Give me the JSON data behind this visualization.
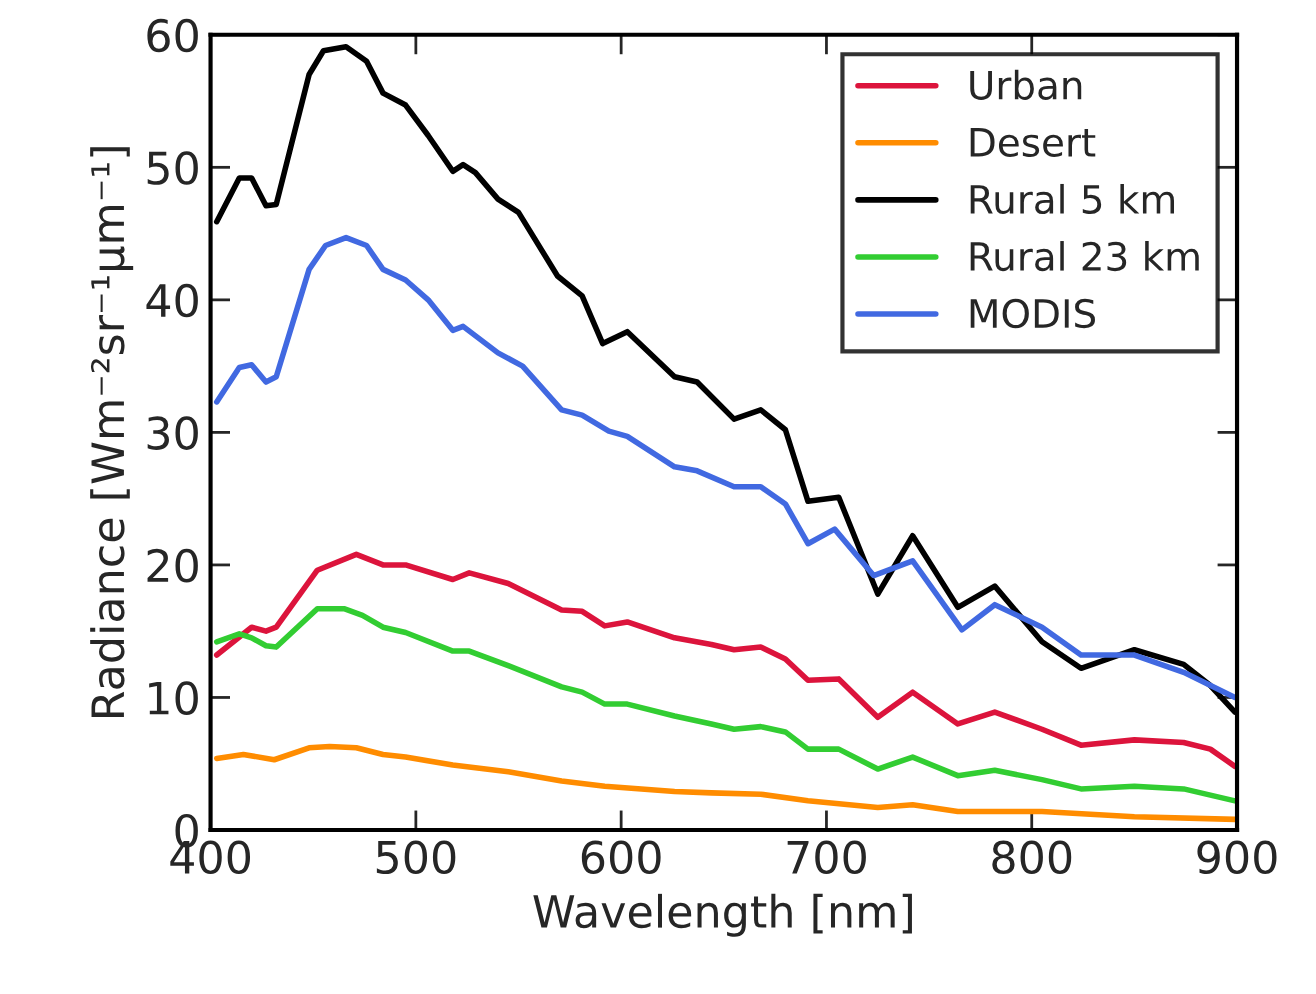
{
  "chart_data": {
    "type": "line",
    "xlabel": "Wavelength [nm]",
    "ylabel": "Radiance [Wm⁻²sr⁻¹µm⁻¹]",
    "xlim": [
      400,
      900
    ],
    "ylim": [
      0,
      60
    ],
    "xticks": [
      400,
      500,
      600,
      700,
      800,
      900
    ],
    "yticks": [
      0,
      10,
      20,
      30,
      40,
      50,
      60
    ],
    "grid": false,
    "legend": "top right",
    "marker": "none",
    "line_style": "solid",
    "series": [
      {
        "name": "Urban",
        "color": "#dc143c",
        "x": [
          403,
          420,
          427,
          432,
          452,
          471,
          484,
          495,
          518,
          526,
          545,
          571,
          581,
          592,
          603,
          626,
          644,
          655,
          668,
          680,
          691,
          706,
          725,
          742,
          764,
          782,
          805,
          824,
          850,
          874,
          887,
          899
        ],
        "values": [
          13.2,
          15.3,
          15.0,
          15.3,
          19.6,
          20.8,
          20.0,
          20.0,
          18.9,
          19.4,
          18.6,
          16.6,
          16.5,
          15.4,
          15.7,
          14.5,
          14.0,
          13.6,
          13.8,
          12.9,
          11.3,
          11.4,
          8.5,
          10.4,
          8.0,
          8.9,
          7.6,
          6.4,
          6.8,
          6.6,
          6.1,
          4.8
        ]
      },
      {
        "name": "Desert",
        "color": "#ff8c00",
        "x": [
          403,
          416,
          431,
          448,
          458,
          471,
          484,
          495,
          518,
          545,
          571,
          592,
          626,
          644,
          668,
          691,
          725,
          742,
          764,
          805,
          850,
          899
        ],
        "values": [
          5.4,
          5.7,
          5.3,
          6.2,
          6.3,
          6.2,
          5.7,
          5.5,
          4.9,
          4.4,
          3.7,
          3.3,
          2.9,
          2.8,
          2.7,
          2.2,
          1.7,
          1.9,
          1.4,
          1.4,
          1.0,
          0.8
        ]
      },
      {
        "name": "Rural 5 km",
        "color": "#000000",
        "x": [
          403,
          414,
          420,
          427,
          432,
          448,
          455,
          466,
          476,
          484,
          495,
          506,
          518,
          523,
          529,
          540,
          550,
          569,
          581,
          591,
          603,
          626,
          637,
          655,
          668,
          680,
          691,
          706,
          725,
          742,
          764,
          782,
          805,
          824,
          850,
          874,
          887,
          899
        ],
        "values": [
          45.9,
          49.2,
          49.2,
          47.1,
          47.2,
          57.0,
          58.8,
          59.1,
          58.0,
          55.6,
          54.7,
          52.4,
          49.7,
          50.2,
          49.6,
          47.6,
          46.6,
          41.8,
          40.3,
          36.7,
          37.6,
          34.2,
          33.8,
          31.0,
          31.7,
          30.2,
          24.8,
          25.1,
          17.8,
          22.2,
          16.8,
          18.4,
          14.2,
          12.2,
          13.6,
          12.5,
          10.9,
          8.9
        ]
      },
      {
        "name": "Rural 23 km",
        "color": "#32cd32",
        "x": [
          403,
          414,
          420,
          427,
          432,
          452,
          465,
          474,
          484,
          495,
          518,
          526,
          545,
          571,
          581,
          592,
          603,
          626,
          644,
          655,
          668,
          680,
          691,
          706,
          725,
          742,
          764,
          782,
          805,
          824,
          850,
          874,
          899
        ],
        "values": [
          14.2,
          14.8,
          14.5,
          13.9,
          13.8,
          16.7,
          16.7,
          16.2,
          15.3,
          14.9,
          13.5,
          13.5,
          12.4,
          10.8,
          10.4,
          9.5,
          9.5,
          8.6,
          8.0,
          7.6,
          7.8,
          7.4,
          6.1,
          6.1,
          4.6,
          5.5,
          4.1,
          4.5,
          3.8,
          3.1,
          3.3,
          3.1,
          2.2
        ]
      },
      {
        "name": "MODIS",
        "color": "#4169e1",
        "x": [
          403,
          414,
          420,
          427,
          432,
          448,
          456,
          466,
          476,
          484,
          495,
          506,
          518,
          523,
          540,
          552,
          571,
          581,
          594,
          603,
          626,
          637,
          655,
          668,
          680,
          691,
          704,
          723,
          742,
          766,
          782,
          805,
          824,
          850,
          874,
          899
        ],
        "values": [
          32.3,
          34.9,
          35.1,
          33.8,
          34.2,
          42.3,
          44.1,
          44.7,
          44.1,
          42.3,
          41.5,
          40.0,
          37.7,
          38.0,
          36.0,
          35.0,
          31.7,
          31.3,
          30.1,
          29.7,
          27.4,
          27.1,
          25.9,
          25.9,
          24.6,
          21.6,
          22.7,
          19.2,
          20.3,
          15.1,
          17.0,
          15.3,
          13.2,
          13.2,
          11.9,
          10.0
        ]
      }
    ]
  }
}
